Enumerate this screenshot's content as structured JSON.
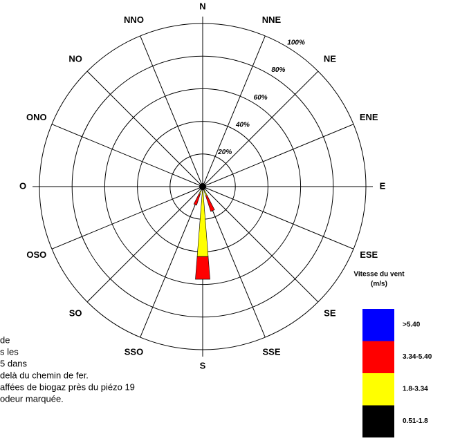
{
  "chart_data": {
    "type": "rose",
    "directions": [
      "N",
      "NNE",
      "NE",
      "ENE",
      "E",
      "ESE",
      "SE",
      "SSE",
      "S",
      "SSO",
      "SO",
      "OSO",
      "O",
      "ONO",
      "NO",
      "NNO"
    ],
    "series": [
      {
        "name": ">5.40",
        "color": "#0000ff",
        "values": [
          0,
          0,
          0,
          0,
          0,
          0,
          0,
          0,
          0,
          0,
          0,
          0,
          0,
          0,
          0,
          0
        ]
      },
      {
        "name": "3.34-5.40",
        "color": "#ff0000",
        "values": [
          0,
          0,
          0,
          0,
          0,
          0,
          0,
          10,
          14,
          7,
          0,
          0,
          0,
          0,
          0,
          0
        ]
      },
      {
        "name": "1.8-3.34",
        "color": "#ffff00",
        "values": [
          0,
          0,
          0,
          0,
          0,
          0,
          0,
          4,
          41,
          3,
          0,
          0,
          0,
          0,
          0,
          0
        ]
      },
      {
        "name": "0.51-1.8",
        "color": "#000000",
        "values": [
          0,
          0,
          0,
          0,
          0,
          0,
          0,
          2,
          2,
          2,
          0,
          0,
          0,
          0,
          0,
          0
        ]
      }
    ],
    "rlim": [
      0,
      100
    ],
    "rticks": [
      {
        "value": 20,
        "label": "20%"
      },
      {
        "value": 40,
        "label": "40%"
      },
      {
        "value": 60,
        "label": "60%"
      },
      {
        "value": 80,
        "label": "80%"
      },
      {
        "value": 100,
        "label": "100%"
      }
    ],
    "legend_title": [
      "Vitesse du vent",
      "(m/s)"
    ],
    "notes": [
      "de",
      "s les",
      "5 dans",
      "delà du chemin de fer.",
      "affées de biogaz près du piézo 19",
      "odeur marquée."
    ]
  }
}
